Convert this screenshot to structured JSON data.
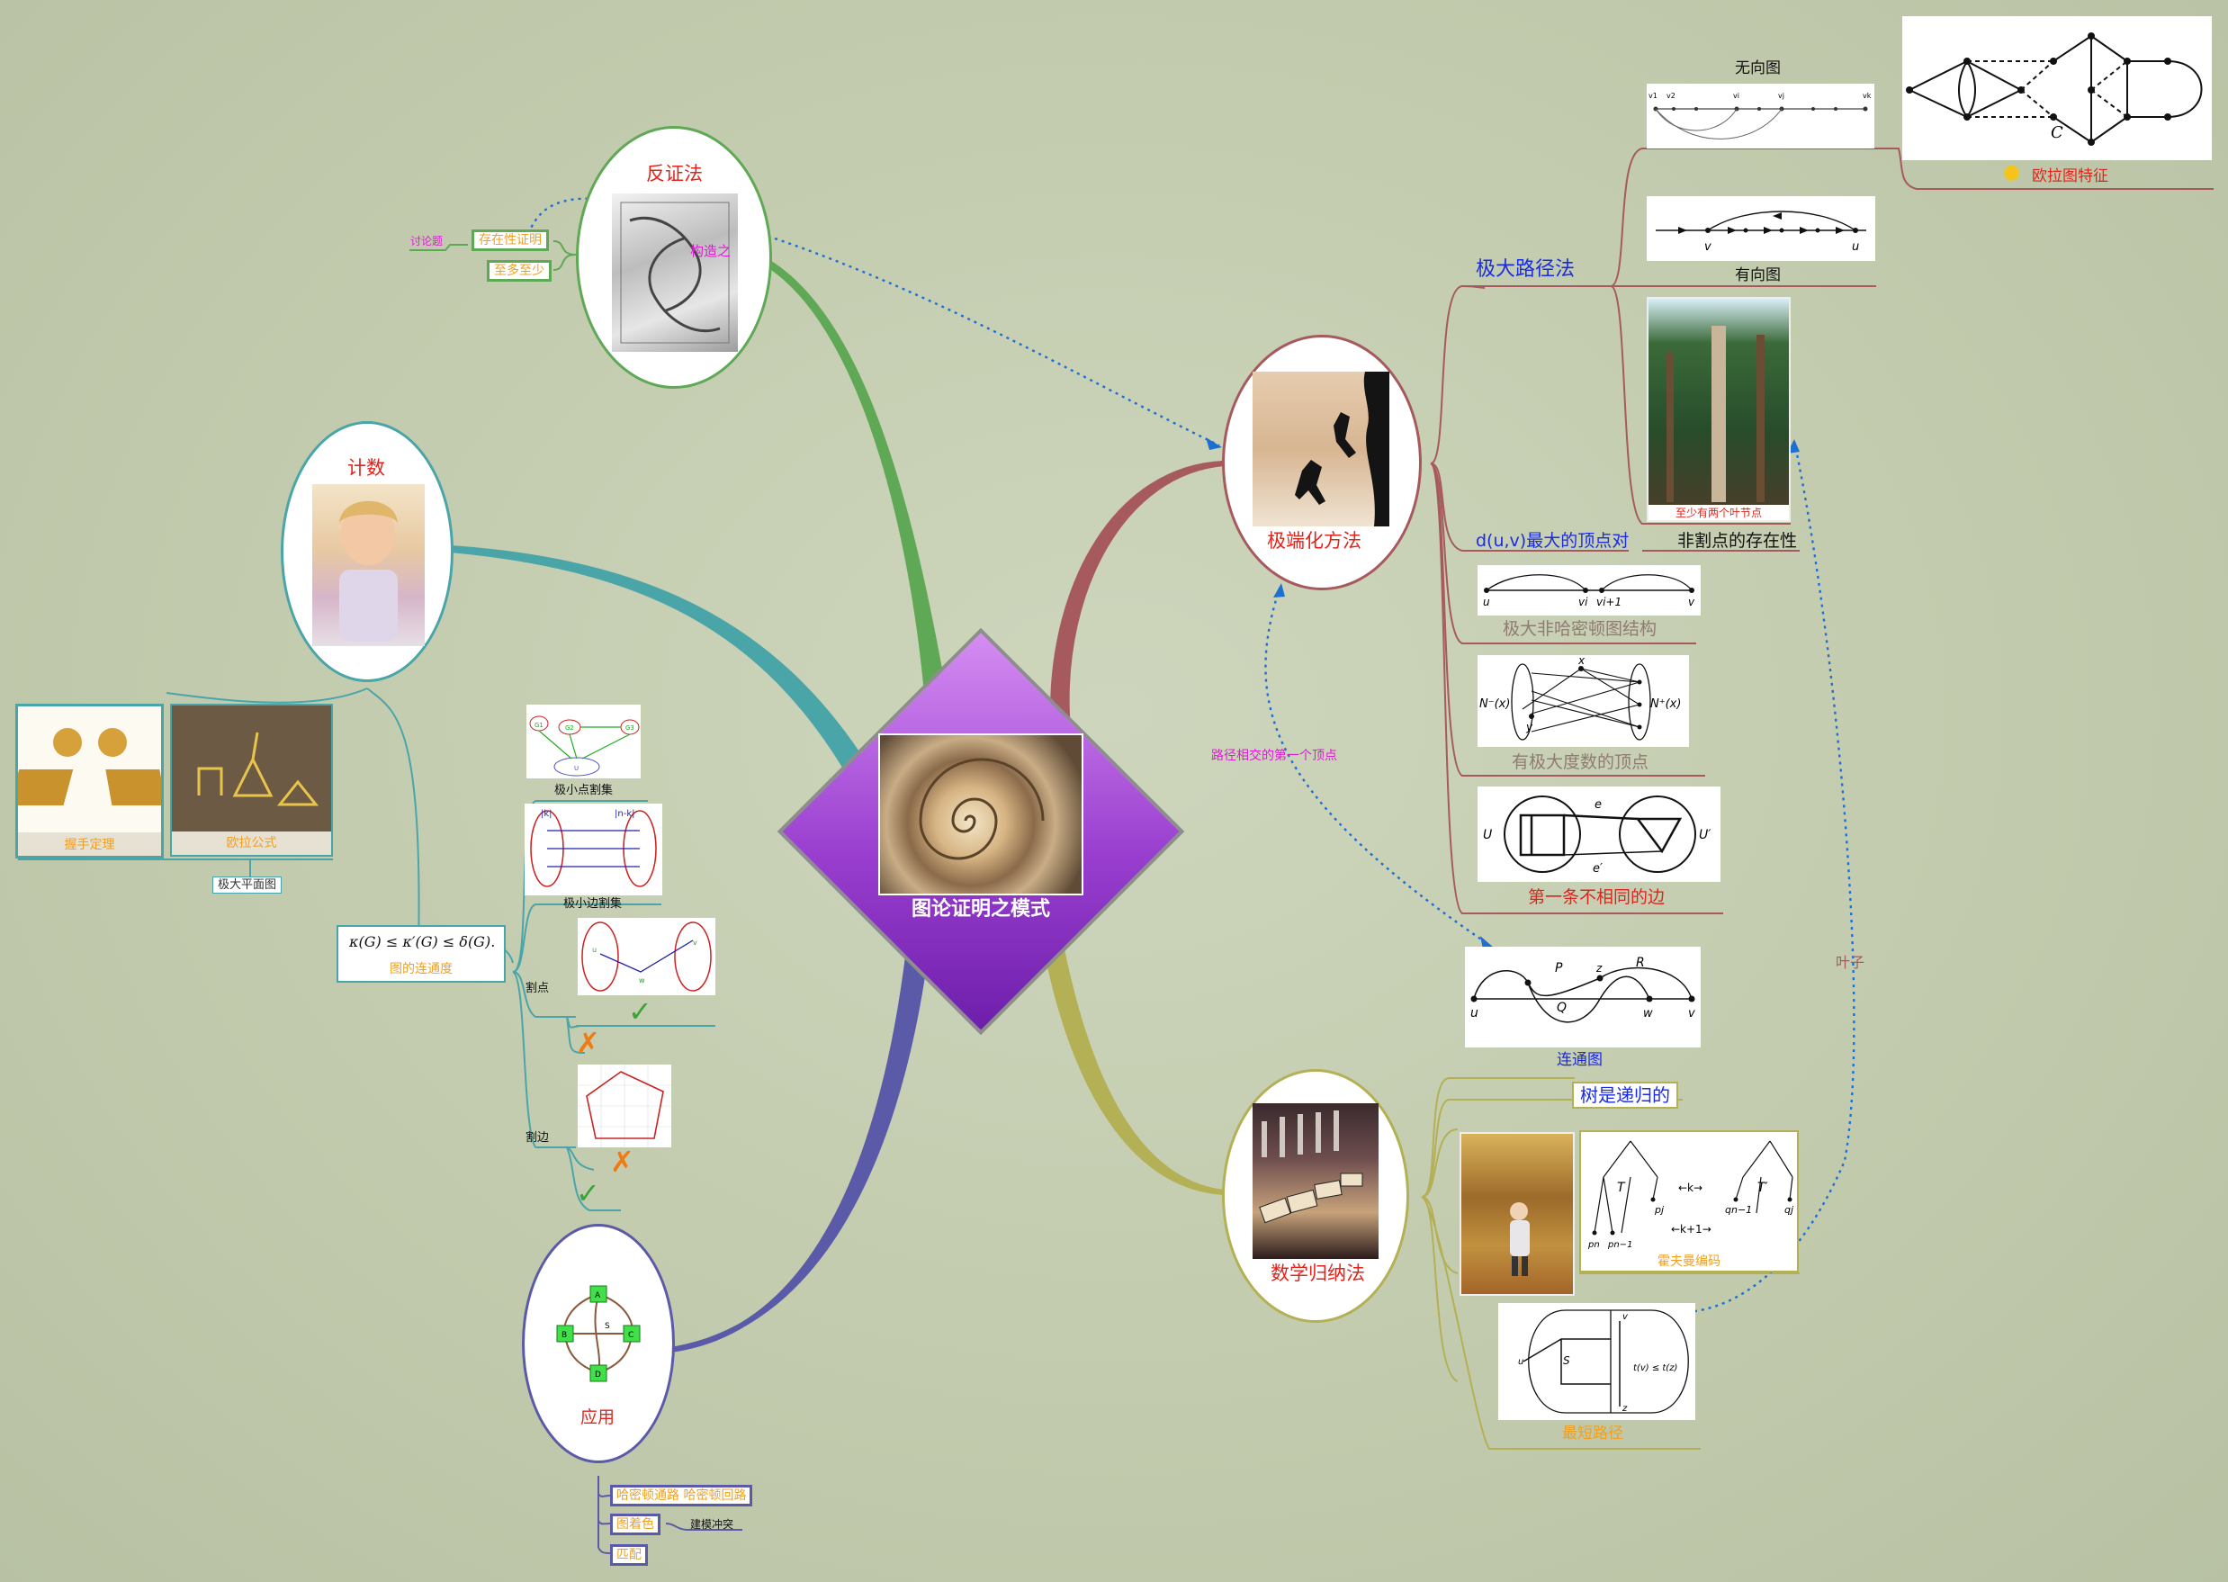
{
  "center": {
    "title": "图论证明之模式"
  },
  "fanzheng": {
    "title": "反证法",
    "image_label": "构造之",
    "children": [
      "存在性证明",
      "至多至少"
    ],
    "discussion": "讨论题"
  },
  "jishu": {
    "title": "计数",
    "children": {
      "handshake": "握手定理",
      "euler": "欧拉公式",
      "max_planar": "极大平面图",
      "connectivity_formula": "κ(G) ≤ κ′(G) ≤ δ(G).",
      "connectivity": "图的连通度",
      "min_vertex_cut": "极小点割集",
      "min_edge_cut": "极小边割集",
      "cut_vertex": "割点",
      "cut_edge": "割边",
      "vertex_cut_labels": {
        "g1": "G1",
        "g2": "G2",
        "g3": "G3",
        "u": "U"
      },
      "edge_cut_labels": {
        "k": "|k|",
        "nk": "|n-k|"
      },
      "cut_vertex_labels": {
        "u": "u",
        "w": "w",
        "v": "v"
      }
    }
  },
  "yingyong": {
    "title": "应用",
    "graph_labels": [
      "A",
      "B",
      "C",
      "D",
      "S"
    ],
    "children": [
      "哈密顿通路 哈密顿回路",
      "图着色",
      "匹配"
    ],
    "coloring_note": "建模冲突"
  },
  "jiduanhua": {
    "title": "极端化方法",
    "max_path": {
      "title": "极大路径法",
      "undirected": "无向图",
      "directed": "有向图",
      "euler_graph": "欧拉图特征",
      "leaves": "至少有两个叶节点",
      "undirected_labels": [
        "v1",
        "v2",
        "vi",
        "vj",
        "vk"
      ],
      "directed_labels": [
        "v",
        "u"
      ],
      "euler_label": "C"
    },
    "max_distance": "d(u,v)最大的顶点对",
    "non_cut_vertex": "非割点的存在性",
    "non_hamilton": "极大非哈密顿图结构",
    "non_hamilton_labels": [
      "u",
      "vi",
      "vi+1",
      "v"
    ],
    "max_degree": "有极大度数的顶点",
    "max_degree_labels": [
      "N⁻(x)",
      "N⁺(x)",
      "x",
      "y"
    ],
    "first_diff_edge": "第一条不相同的边",
    "first_diff_labels": [
      "U",
      "U′",
      "e",
      "e′"
    ],
    "connected_graph": "连通图",
    "connected_labels": [
      "u",
      "P",
      "z",
      "R",
      "Q",
      "w",
      "v"
    ],
    "path_first_vertex": "路径相交的第一个顶点"
  },
  "guina": {
    "title": "数学归纳法",
    "tree_recursive": "树是递归的",
    "huffman": "霍夫曼编码",
    "huffman_labels": [
      "T",
      "pj",
      "←k→",
      "T′",
      "qn−1",
      "qj",
      "←k+1→",
      "pn",
      "pn−1"
    ],
    "shortest_path": "最短路径",
    "shortest_labels": [
      "u",
      "S",
      "v",
      "z",
      "t(v) ≤ t(z)"
    ],
    "leaf": "叶子"
  },
  "colors": {
    "green": "#5fa855",
    "teal": "#4aa5a8",
    "indigo": "#5b5aa8",
    "olive": "#b3b055",
    "maroon": "#a65a5e",
    "center_purple": "#8a34c0",
    "red_text": "#e1241b",
    "orange_text": "#f0a020",
    "blue_text": "#1a2be0"
  }
}
